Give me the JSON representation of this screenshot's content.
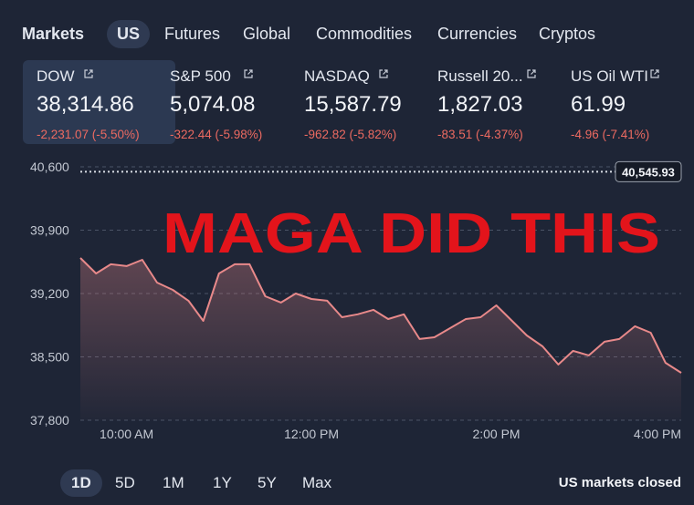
{
  "nav": [
    "Markets",
    "US",
    "Futures",
    "Global",
    "Commodities",
    "Currencies",
    "Cryptos"
  ],
  "tickers": [
    {
      "name": "DOW",
      "price": "38,314.86",
      "change": "-2,231.07 (-5.50%)"
    },
    {
      "name": "S&P 500",
      "price": "5,074.08",
      "change": "-322.44 (-5.98%)"
    },
    {
      "name": "NASDAQ",
      "price": "15,587.79",
      "change": "-962.82 (-5.82%)"
    },
    {
      "name": "Russell 20...",
      "price": "1,827.03",
      "change": "-83.51 (-4.37%)"
    },
    {
      "name": "US Oil WTI",
      "price": "61.99",
      "change": "-4.96 (-7.41%)"
    }
  ],
  "chart": {
    "type": "line",
    "annotation": "MAGA DID THIS",
    "color": "#e8898a",
    "x": [
      9.5,
      9.67,
      9.83,
      10,
      10.17,
      10.33,
      10.5,
      10.67,
      10.83,
      11,
      11.17,
      11.33,
      11.5,
      11.67,
      11.83,
      12,
      12.17,
      12.33,
      12.5,
      12.67,
      12.83,
      13,
      13.17,
      13.33,
      13.5,
      13.67,
      13.83,
      14,
      14.17,
      14.33,
      14.5,
      14.67,
      14.83,
      15,
      15.17,
      15.33,
      15.5,
      15.67,
      15.83,
      16
    ],
    "values": [
      39593,
      39422,
      39523,
      39503,
      39573,
      39321,
      39240,
      39120,
      38898,
      39422,
      39523,
      39523,
      39170,
      39100,
      39200,
      39140,
      39120,
      38938,
      38970,
      39020,
      38918,
      38970,
      38697,
      38717,
      38817,
      38918,
      38938,
      39069,
      38898,
      38737,
      38616,
      38415,
      38566,
      38516,
      38667,
      38697,
      38838,
      38767,
      38435,
      38324
    ],
    "xlim": [
      9.5,
      16
    ],
    "xticks": [
      {
        "value": 10,
        "label": "10:00 AM"
      },
      {
        "value": 12,
        "label": "12:00 PM"
      },
      {
        "value": 14,
        "label": "2:00 PM"
      },
      {
        "value": 16,
        "label": "4:00 PM"
      }
    ],
    "ylim": [
      37800,
      40600
    ],
    "yticks": [
      {
        "value": 37800,
        "label": "37,800"
      },
      {
        "value": 38500,
        "label": "38,500"
      },
      {
        "value": 39200,
        "label": "39,200"
      },
      {
        "value": 39900,
        "label": "39,900"
      },
      {
        "value": 40600,
        "label": "40,600"
      }
    ],
    "grid": true,
    "previous_close": {
      "value": 40545.93,
      "label": "40,545.93"
    }
  },
  "ranges": [
    "1D",
    "5D",
    "1M",
    "1Y",
    "5Y",
    "Max"
  ],
  "status": "US markets closed"
}
